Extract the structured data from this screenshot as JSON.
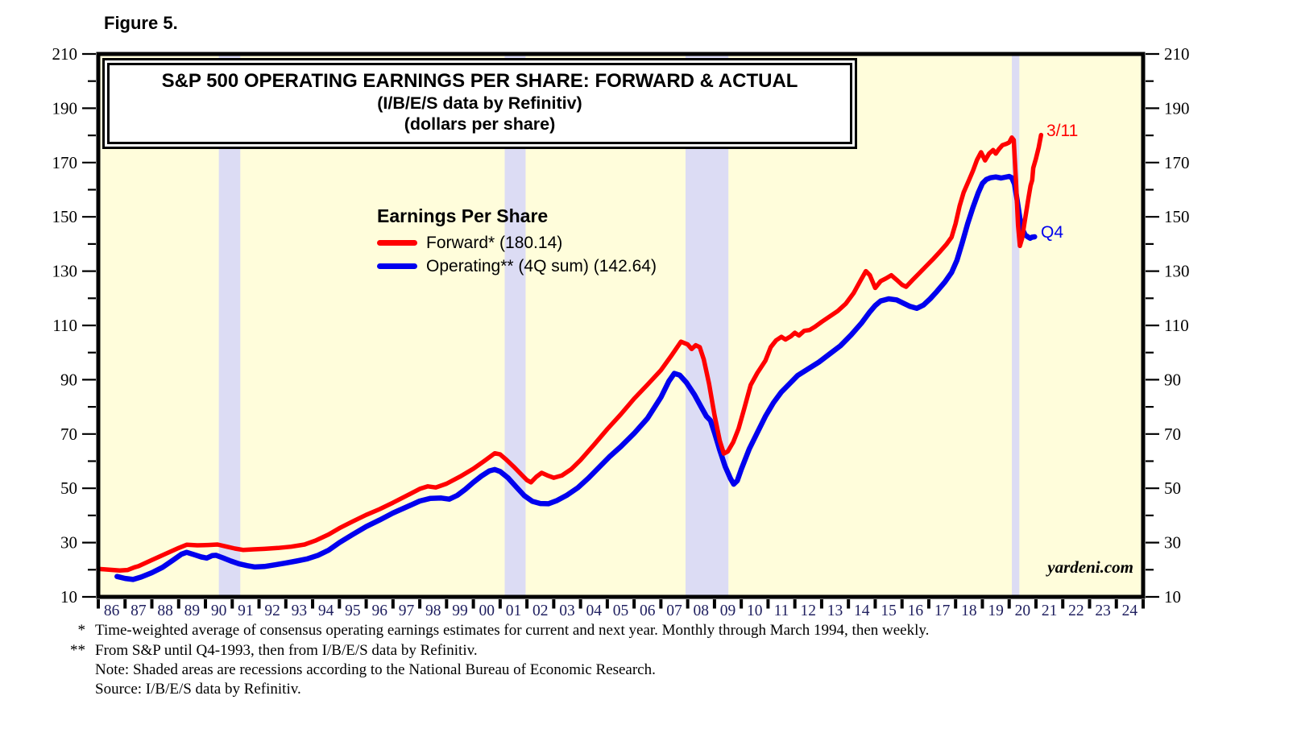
{
  "figure_label": "Figure 5.",
  "title": {
    "line1": "S&P 500 OPERATING EARNINGS PER SHARE: FORWARD & ACTUAL",
    "line2": "(I/B/E/S data by Refinitiv)",
    "line3": "(dollars per share)"
  },
  "legend": {
    "heading": "Earnings Per Share",
    "items": [
      {
        "label": "Forward* (180.14)",
        "color": "#FF0000"
      },
      {
        "label": "Operating** (4Q sum) (142.64)",
        "color": "#0000EE"
      }
    ]
  },
  "annotations": {
    "forward_end": "3/11",
    "operating_end": "Q4"
  },
  "watermark": "yardeni.com",
  "footnotes": [
    {
      "marker": "*",
      "text": "Time-weighted average of consensus operating earnings estimates for current and next year. Monthly through March 1994, then weekly."
    },
    {
      "marker": "**",
      "text": "From S&P until Q4-1993, then from I/B/E/S data by Refinitiv."
    },
    {
      "marker": "",
      "text": "Note: Shaded areas are recessions according to the National Bureau of Economic Research."
    },
    {
      "marker": "",
      "text": "Source: I/B/E/S data by Refinitiv."
    }
  ],
  "chart_data": {
    "type": "line",
    "title": "S&P 500 Operating Earnings Per Share: Forward & Actual (dollars per share)",
    "xlim": [
      1986,
      2025
    ],
    "ylim": [
      10,
      210
    ],
    "y_major_ticks": [
      10,
      30,
      50,
      70,
      90,
      110,
      130,
      150,
      170,
      190,
      210
    ],
    "y_minor_step": 10,
    "x_tick_labels": [
      "86",
      "87",
      "88",
      "89",
      "90",
      "91",
      "92",
      "93",
      "94",
      "95",
      "96",
      "97",
      "98",
      "99",
      "00",
      "01",
      "02",
      "03",
      "04",
      "05",
      "06",
      "07",
      "08",
      "09",
      "10",
      "11",
      "12",
      "13",
      "14",
      "15",
      "16",
      "17",
      "18",
      "19",
      "20",
      "21",
      "22",
      "23",
      "24"
    ],
    "background": "#FFFDDB",
    "recession_band_color": "#DCDCF4",
    "axis_color": "#000000",
    "y_label_color": "#000000",
    "x_label_color": "#202060",
    "recession_bands": [
      [
        1990.5,
        1991.3
      ],
      [
        2001.17,
        2001.95
      ],
      [
        2007.92,
        2009.52
      ],
      [
        2020.1,
        2020.38
      ]
    ],
    "final_values": {
      "forward": 180.14,
      "operating_4q_sum": 142.64,
      "forward_asof": "3/11",
      "operating_asof": "Q4"
    },
    "series": [
      {
        "name": "Operating (4Q sum)",
        "color": "#0000EE",
        "width": 6.5,
        "points": [
          [
            1986.7,
            17.5
          ],
          [
            1987.0,
            16.8
          ],
          [
            1987.3,
            16.4
          ],
          [
            1987.6,
            17.3
          ],
          [
            1988.0,
            18.9
          ],
          [
            1988.4,
            20.9
          ],
          [
            1988.8,
            23.6
          ],
          [
            1989.1,
            25.7
          ],
          [
            1989.3,
            26.4
          ],
          [
            1989.6,
            25.5
          ],
          [
            1989.85,
            24.7
          ],
          [
            1990.05,
            24.3
          ],
          [
            1990.25,
            25.2
          ],
          [
            1990.4,
            25.3
          ],
          [
            1990.65,
            24.4
          ],
          [
            1990.95,
            23.2
          ],
          [
            1991.25,
            22.2
          ],
          [
            1991.55,
            21.5
          ],
          [
            1991.85,
            21.0
          ],
          [
            1992.2,
            21.2
          ],
          [
            1992.6,
            21.8
          ],
          [
            1993.0,
            22.5
          ],
          [
            1993.4,
            23.2
          ],
          [
            1993.8,
            24.0
          ],
          [
            1994.2,
            25.3
          ],
          [
            1994.6,
            27.2
          ],
          [
            1995.0,
            30.0
          ],
          [
            1995.5,
            33.0
          ],
          [
            1996.0,
            35.9
          ],
          [
            1996.5,
            38.3
          ],
          [
            1997.0,
            40.9
          ],
          [
            1997.5,
            43.1
          ],
          [
            1998.0,
            45.3
          ],
          [
            1998.4,
            46.3
          ],
          [
            1998.8,
            46.4
          ],
          [
            1999.1,
            46.0
          ],
          [
            1999.4,
            47.4
          ],
          [
            1999.7,
            49.6
          ],
          [
            2000.0,
            52.2
          ],
          [
            2000.3,
            54.5
          ],
          [
            2000.6,
            56.4
          ],
          [
            2000.8,
            56.9
          ],
          [
            2001.0,
            56.2
          ],
          [
            2001.3,
            53.8
          ],
          [
            2001.6,
            50.5
          ],
          [
            2001.9,
            47.3
          ],
          [
            2002.2,
            45.2
          ],
          [
            2002.5,
            44.4
          ],
          [
            2002.8,
            44.3
          ],
          [
            2003.1,
            45.4
          ],
          [
            2003.5,
            47.5
          ],
          [
            2003.9,
            50.2
          ],
          [
            2004.3,
            53.8
          ],
          [
            2004.7,
            57.8
          ],
          [
            2005.1,
            61.8
          ],
          [
            2005.5,
            65.3
          ],
          [
            2006.0,
            70.2
          ],
          [
            2006.5,
            75.8
          ],
          [
            2007.0,
            83.5
          ],
          [
            2007.3,
            89.5
          ],
          [
            2007.5,
            92.3
          ],
          [
            2007.7,
            91.7
          ],
          [
            2007.95,
            89.0
          ],
          [
            2008.25,
            84.5
          ],
          [
            2008.5,
            80.0
          ],
          [
            2008.7,
            76.5
          ],
          [
            2008.85,
            75.0
          ],
          [
            2009.0,
            70.5
          ],
          [
            2009.2,
            64.0
          ],
          [
            2009.4,
            58.0
          ],
          [
            2009.6,
            53.5
          ],
          [
            2009.72,
            51.5
          ],
          [
            2009.85,
            52.8
          ],
          [
            2010.0,
            57.0
          ],
          [
            2010.3,
            64.5
          ],
          [
            2010.6,
            70.5
          ],
          [
            2010.9,
            76.5
          ],
          [
            2011.2,
            81.5
          ],
          [
            2011.5,
            85.5
          ],
          [
            2011.8,
            88.5
          ],
          [
            2012.1,
            91.5
          ],
          [
            2012.5,
            94.0
          ],
          [
            2012.9,
            96.5
          ],
          [
            2013.3,
            99.5
          ],
          [
            2013.7,
            102.5
          ],
          [
            2014.1,
            106.5
          ],
          [
            2014.5,
            111.0
          ],
          [
            2014.8,
            115.0
          ],
          [
            2015.0,
            117.3
          ],
          [
            2015.2,
            119.0
          ],
          [
            2015.5,
            119.8
          ],
          [
            2015.8,
            119.4
          ],
          [
            2016.05,
            118.2
          ],
          [
            2016.3,
            117.0
          ],
          [
            2016.55,
            116.3
          ],
          [
            2016.8,
            117.5
          ],
          [
            2017.05,
            119.8
          ],
          [
            2017.3,
            122.5
          ],
          [
            2017.6,
            126.0
          ],
          [
            2017.85,
            129.5
          ],
          [
            2018.05,
            134.0
          ],
          [
            2018.25,
            140.5
          ],
          [
            2018.45,
            147.5
          ],
          [
            2018.65,
            153.5
          ],
          [
            2018.85,
            159.0
          ],
          [
            2019.0,
            162.3
          ],
          [
            2019.15,
            163.8
          ],
          [
            2019.3,
            164.4
          ],
          [
            2019.5,
            164.7
          ],
          [
            2019.7,
            164.3
          ],
          [
            2019.85,
            164.6
          ],
          [
            2020.0,
            164.9
          ],
          [
            2020.1,
            164.4
          ],
          [
            2020.2,
            162.0
          ],
          [
            2020.3,
            156.0
          ],
          [
            2020.4,
            149.5
          ],
          [
            2020.5,
            145.3
          ],
          [
            2020.6,
            143.3
          ],
          [
            2020.7,
            142.6
          ],
          [
            2020.78,
            142.1
          ],
          [
            2020.85,
            142.5
          ],
          [
            2020.95,
            142.64
          ]
        ]
      },
      {
        "name": "Forward",
        "color": "#FF0000",
        "width": 5.5,
        "points": [
          [
            1986.0,
            20.3
          ],
          [
            1986.4,
            20.0
          ],
          [
            1986.8,
            19.7
          ],
          [
            1987.1,
            19.9
          ],
          [
            1987.35,
            20.9
          ],
          [
            1987.5,
            21.3
          ],
          [
            1988.0,
            23.6
          ],
          [
            1988.5,
            25.8
          ],
          [
            1989.0,
            28.0
          ],
          [
            1989.3,
            29.2
          ],
          [
            1989.7,
            29.0
          ],
          [
            1990.1,
            29.1
          ],
          [
            1990.45,
            29.3
          ],
          [
            1990.8,
            28.5
          ],
          [
            1991.1,
            27.8
          ],
          [
            1991.4,
            27.3
          ],
          [
            1991.8,
            27.5
          ],
          [
            1992.2,
            27.7
          ],
          [
            1992.7,
            28.0
          ],
          [
            1993.2,
            28.5
          ],
          [
            1993.7,
            29.3
          ],
          [
            1994.1,
            30.7
          ],
          [
            1994.6,
            33.0
          ],
          [
            1995.0,
            35.3
          ],
          [
            1995.5,
            37.8
          ],
          [
            1996.0,
            40.2
          ],
          [
            1996.5,
            42.3
          ],
          [
            1997.0,
            44.7
          ],
          [
            1997.5,
            47.2
          ],
          [
            1998.0,
            49.8
          ],
          [
            1998.3,
            50.7
          ],
          [
            1998.6,
            50.3
          ],
          [
            1999.0,
            51.7
          ],
          [
            1999.5,
            54.3
          ],
          [
            2000.0,
            57.2
          ],
          [
            2000.4,
            60.0
          ],
          [
            2000.8,
            62.9
          ],
          [
            2001.0,
            62.5
          ],
          [
            2001.2,
            60.8
          ],
          [
            2001.5,
            58.0
          ],
          [
            2001.8,
            55.0
          ],
          [
            2002.0,
            53.0
          ],
          [
            2002.15,
            52.2
          ],
          [
            2002.35,
            54.2
          ],
          [
            2002.55,
            55.7
          ],
          [
            2002.8,
            54.6
          ],
          [
            2003.0,
            53.9
          ],
          [
            2003.3,
            54.7
          ],
          [
            2003.65,
            57.0
          ],
          [
            2004.0,
            60.4
          ],
          [
            2004.5,
            66.0
          ],
          [
            2005.0,
            71.8
          ],
          [
            2005.5,
            77.2
          ],
          [
            2006.0,
            83.0
          ],
          [
            2006.5,
            88.2
          ],
          [
            2007.0,
            93.5
          ],
          [
            2007.4,
            99.0
          ],
          [
            2007.75,
            104.0
          ],
          [
            2008.0,
            103.0
          ],
          [
            2008.15,
            101.3
          ],
          [
            2008.3,
            102.7
          ],
          [
            2008.45,
            102.0
          ],
          [
            2008.6,
            97.5
          ],
          [
            2008.8,
            88.5
          ],
          [
            2009.0,
            77.0
          ],
          [
            2009.2,
            67.5
          ],
          [
            2009.35,
            62.8
          ],
          [
            2009.5,
            63.6
          ],
          [
            2009.7,
            67.0
          ],
          [
            2009.9,
            72.0
          ],
          [
            2010.1,
            79.0
          ],
          [
            2010.35,
            88.0
          ],
          [
            2010.6,
            92.5
          ],
          [
            2010.9,
            97.0
          ],
          [
            2011.1,
            102.0
          ],
          [
            2011.3,
            104.5
          ],
          [
            2011.5,
            105.8
          ],
          [
            2011.65,
            104.8
          ],
          [
            2011.85,
            106.0
          ],
          [
            2012.0,
            107.3
          ],
          [
            2012.15,
            106.3
          ],
          [
            2012.35,
            108.0
          ],
          [
            2012.55,
            108.3
          ],
          [
            2012.75,
            109.5
          ],
          [
            2013.0,
            111.3
          ],
          [
            2013.3,
            113.3
          ],
          [
            2013.6,
            115.3
          ],
          [
            2013.9,
            118.0
          ],
          [
            2014.2,
            122.0
          ],
          [
            2014.45,
            126.5
          ],
          [
            2014.65,
            130.0
          ],
          [
            2014.8,
            128.5
          ],
          [
            2015.0,
            123.8
          ],
          [
            2015.2,
            126.3
          ],
          [
            2015.4,
            127.3
          ],
          [
            2015.6,
            128.5
          ],
          [
            2015.8,
            126.8
          ],
          [
            2016.0,
            125.0
          ],
          [
            2016.15,
            124.2
          ],
          [
            2016.4,
            126.8
          ],
          [
            2016.65,
            129.3
          ],
          [
            2016.9,
            131.8
          ],
          [
            2017.15,
            134.3
          ],
          [
            2017.4,
            137.0
          ],
          [
            2017.65,
            139.8
          ],
          [
            2017.85,
            142.5
          ],
          [
            2018.0,
            147.5
          ],
          [
            2018.15,
            154.0
          ],
          [
            2018.3,
            159.0
          ],
          [
            2018.5,
            163.5
          ],
          [
            2018.65,
            167.0
          ],
          [
            2018.8,
            171.0
          ],
          [
            2018.95,
            173.8
          ],
          [
            2019.1,
            170.8
          ],
          [
            2019.25,
            173.3
          ],
          [
            2019.4,
            174.6
          ],
          [
            2019.5,
            173.3
          ],
          [
            2019.62,
            175.0
          ],
          [
            2019.75,
            176.4
          ],
          [
            2019.9,
            176.9
          ],
          [
            2020.0,
            177.4
          ],
          [
            2020.1,
            179.2
          ],
          [
            2020.17,
            178.3
          ],
          [
            2020.25,
            164.0
          ],
          [
            2020.33,
            147.0
          ],
          [
            2020.4,
            139.3
          ],
          [
            2020.48,
            142.0
          ],
          [
            2020.56,
            147.0
          ],
          [
            2020.64,
            152.0
          ],
          [
            2020.72,
            157.0
          ],
          [
            2020.8,
            161.5
          ],
          [
            2020.86,
            163.5
          ],
          [
            2020.9,
            168.0
          ],
          [
            2021.0,
            171.5
          ],
          [
            2021.1,
            175.5
          ],
          [
            2021.19,
            180.14
          ]
        ]
      }
    ]
  }
}
